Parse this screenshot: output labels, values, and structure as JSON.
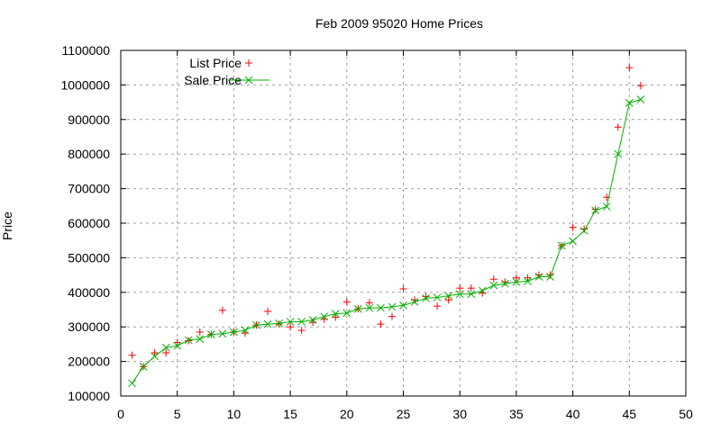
{
  "chart_data": {
    "type": "line",
    "title": "Feb 2009 95020 Home Prices",
    "xlabel": "",
    "ylabel": "Price",
    "xlim": [
      0,
      50
    ],
    "ylim": [
      100000,
      1100000
    ],
    "xticks": [
      0,
      5,
      10,
      15,
      20,
      25,
      30,
      35,
      40,
      45,
      50
    ],
    "yticks": [
      100000,
      200000,
      300000,
      400000,
      500000,
      600000,
      700000,
      800000,
      900000,
      1000000,
      1100000
    ],
    "grid": true,
    "legend_position": "top-left",
    "x": [
      1,
      2,
      3,
      4,
      5,
      6,
      7,
      8,
      9,
      10,
      11,
      12,
      13,
      14,
      15,
      16,
      17,
      18,
      19,
      20,
      21,
      22,
      23,
      24,
      25,
      26,
      27,
      28,
      29,
      30,
      31,
      32,
      33,
      34,
      35,
      36,
      37,
      38,
      39,
      40,
      41,
      42,
      43,
      44,
      45,
      46
    ],
    "series": [
      {
        "name": "List Price",
        "style": "points",
        "marker": "+",
        "color": "#ff0000",
        "values": [
          218000,
          185000,
          225000,
          225000,
          255000,
          260000,
          285000,
          278000,
          348000,
          285000,
          282000,
          305000,
          345000,
          308000,
          300000,
          290000,
          313000,
          322000,
          328000,
          372000,
          352000,
          370000,
          308000,
          330000,
          410000,
          378000,
          388000,
          360000,
          378000,
          412000,
          412000,
          398000,
          438000,
          430000,
          442000,
          442000,
          450000,
          450000,
          535000,
          588000,
          583000,
          640000,
          675000,
          878000,
          1050000,
          998000
        ]
      },
      {
        "name": "Sale Price",
        "style": "linespoints",
        "marker": "x",
        "color": "#00b000",
        "values": [
          137000,
          185000,
          215000,
          240000,
          245000,
          262000,
          265000,
          278000,
          280000,
          285000,
          290000,
          305000,
          308000,
          310000,
          315000,
          315000,
          320000,
          330000,
          338000,
          340000,
          352000,
          355000,
          355000,
          358000,
          362000,
          372000,
          383000,
          385000,
          390000,
          395000,
          395000,
          405000,
          420000,
          425000,
          430000,
          432000,
          445000,
          445000,
          535000,
          548000,
          578000,
          637000,
          648000,
          800000,
          948000,
          958000
        ]
      }
    ]
  },
  "legend": {
    "items": [
      {
        "label": "List Price"
      },
      {
        "label": "Sale Price"
      }
    ]
  }
}
